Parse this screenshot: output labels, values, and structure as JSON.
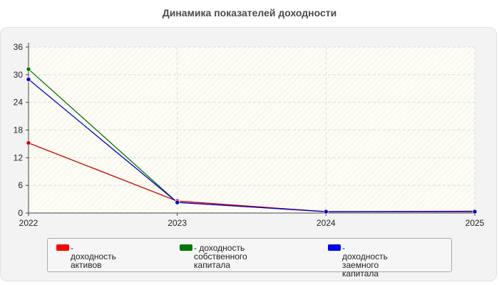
{
  "chart_data": {
    "type": "line",
    "title": "Динамика показателей доходности",
    "categories": [
      "2022",
      "2023",
      "2024",
      "2025"
    ],
    "ylim": [
      0,
      36
    ],
    "yticks": [
      0,
      6,
      12,
      18,
      24,
      30,
      36
    ],
    "grid": true,
    "legend_position": "bottom",
    "series": [
      {
        "name": "- доходность активов",
        "color": "#ff0000",
        "line_color": "#cc0000",
        "values": [
          15.2,
          2.6,
          0.3,
          0.4
        ]
      },
      {
        "name": "- доходность собственного\nкапитала",
        "color": "#007700",
        "line_color": "#007700",
        "values": [
          31.2,
          2.3,
          null,
          0.4
        ]
      },
      {
        "name": "- доходность заемного\nкапитала",
        "color": "#0000ee",
        "line_color": "#0000cc",
        "values": [
          29.0,
          2.3,
          0.3,
          0.3
        ]
      }
    ]
  }
}
